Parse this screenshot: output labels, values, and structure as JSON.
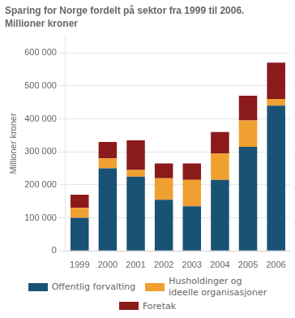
{
  "chart_data": {
    "type": "bar",
    "title": "Sparing for Norge fordelt på sektor fra 1999 til 2006.",
    "subtitle": "Millioner kroner",
    "ylabel": "Millioner kroner",
    "categories": [
      "1999",
      "2000",
      "2001",
      "2002",
      "2003",
      "2004",
      "2005",
      "2006"
    ],
    "series": [
      {
        "name": "Offentlig forvalting",
        "color": "#1a5276",
        "values": [
          100000,
          250000,
          225000,
          155000,
          135000,
          215000,
          315000,
          440000
        ]
      },
      {
        "name": "Husholdinger og\nideelle organisasjoner",
        "color": "#f0a030",
        "values": [
          30000,
          30000,
          20000,
          65000,
          80000,
          80000,
          80000,
          20000
        ]
      },
      {
        "name": "Foretak",
        "color": "#8b1a1a",
        "values": [
          40000,
          50000,
          90000,
          45000,
          50000,
          65000,
          75000,
          110000
        ]
      }
    ],
    "stacked": true,
    "ylim": [
      0,
      650000
    ],
    "yticks": [
      0,
      {
        "value": 100000,
        "label": "100 000"
      },
      {
        "value": 200000,
        "label": "200 000"
      },
      {
        "value": 300000,
        "label": "300 000"
      },
      {
        "value": 400000,
        "label": "400 000"
      },
      {
        "value": 500000,
        "label": "500 000"
      },
      {
        "value": 600000,
        "label": "600 000"
      }
    ],
    "grid": true,
    "legend": "bottom"
  }
}
